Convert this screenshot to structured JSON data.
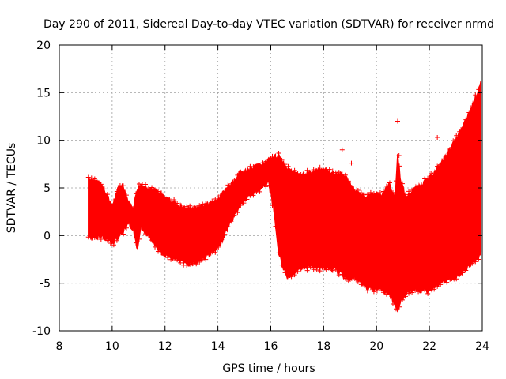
{
  "chart_data": {
    "type": "scatter",
    "title": "Day 290 of 2011, Sidereal Day-to-day VTEC variation (SDTVAR) for receiver nrmd",
    "xlabel": "GPS time / hours",
    "ylabel": "SDTVAR / TECUs",
    "xlim": [
      8,
      24
    ],
    "ylim": [
      -10,
      20
    ],
    "xticks": [
      8,
      10,
      12,
      14,
      16,
      18,
      20,
      22,
      24
    ],
    "yticks": [
      -10,
      -5,
      0,
      5,
      10,
      15,
      20
    ],
    "grid": true,
    "color": "#ff0000",
    "marker": "+",
    "series": [
      {
        "name": "SDTVAR",
        "envelope": {
          "x": [
            9.1,
            9.3,
            9.6,
            9.9,
            10.0,
            10.2,
            10.4,
            10.6,
            10.8,
            10.95,
            11.1,
            11.5,
            11.9,
            12.2,
            12.5,
            12.8,
            13.2,
            13.6,
            14.0,
            14.4,
            14.8,
            15.2,
            15.6,
            15.9,
            16.1,
            16.3,
            16.6,
            17.0,
            17.5,
            18.0,
            18.5,
            18.8,
            19.2,
            19.6,
            19.9,
            20.2,
            20.5,
            20.7,
            20.8,
            20.9,
            21.1,
            21.4,
            21.7,
            22.0,
            22.3,
            22.6,
            22.9,
            23.2,
            23.5,
            23.8,
            23.95
          ],
          "upper": [
            6.0,
            5.8,
            5.4,
            3.7,
            3.0,
            4.8,
            5.4,
            3.6,
            2.8,
            5.0,
            5.3,
            4.9,
            4.2,
            3.7,
            3.2,
            2.8,
            2.9,
            3.3,
            3.8,
            5.2,
            6.5,
            7.0,
            7.4,
            7.9,
            8.4,
            8.3,
            7.0,
            6.4,
            6.6,
            6.9,
            6.5,
            6.3,
            4.6,
            4.0,
            4.4,
            4.3,
            5.4,
            3.7,
            8.5,
            6.0,
            4.0,
            4.8,
            5.4,
            6.0,
            7.0,
            8.2,
            9.6,
            11.0,
            12.8,
            14.8,
            16.2
          ],
          "lower": [
            0.0,
            -0.3,
            0.0,
            -0.6,
            -0.9,
            -0.2,
            0.4,
            1.4,
            0.6,
            -1.6,
            0.9,
            -0.4,
            -1.9,
            -2.3,
            -2.6,
            -3.0,
            -2.8,
            -2.1,
            -1.4,
            1.0,
            3.0,
            4.2,
            4.9,
            5.7,
            3.0,
            -1.8,
            -4.4,
            -3.7,
            -3.2,
            -3.4,
            -3.6,
            -4.4,
            -4.5,
            -5.4,
            -5.7,
            -5.6,
            -6.2,
            -7.3,
            -7.8,
            -7.0,
            -6.1,
            -5.6,
            -5.8,
            -5.8,
            -5.1,
            -4.8,
            -4.5,
            -4.0,
            -3.2,
            -2.6,
            -1.6
          ]
        },
        "outliers": [
          {
            "x": 18.7,
            "y": 9.0
          },
          {
            "x": 20.8,
            "y": 12.0
          },
          {
            "x": 19.05,
            "y": 7.6
          },
          {
            "x": 22.3,
            "y": 10.3
          },
          {
            "x": 20.85,
            "y": 8.4
          }
        ]
      }
    ]
  }
}
